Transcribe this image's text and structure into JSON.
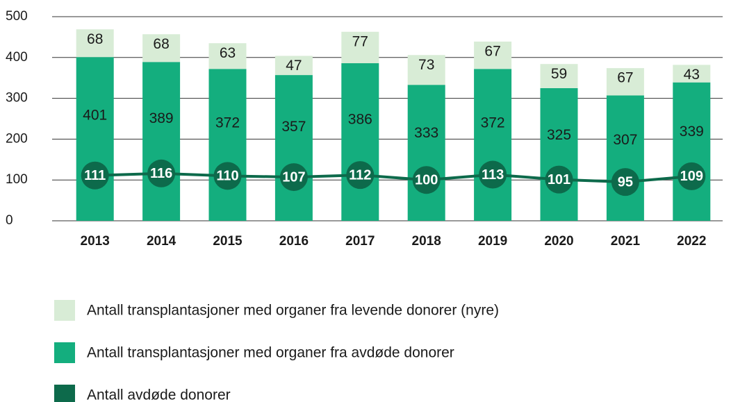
{
  "chart_data": {
    "type": "bar",
    "stacked": true,
    "categories": [
      "2013",
      "2014",
      "2015",
      "2016",
      "2017",
      "2018",
      "2019",
      "2020",
      "2021",
      "2022"
    ],
    "series": [
      {
        "name": "Antall transplantasjoner med organer fra avdøde donorer",
        "color": "#14ae7e",
        "values": [
          401,
          389,
          372,
          357,
          386,
          333,
          372,
          325,
          307,
          339
        ]
      },
      {
        "name": "Antall transplantasjoner med organer fra levende donorer (nyre)",
        "color": "#d8ecd6",
        "values": [
          68,
          68,
          63,
          47,
          77,
          73,
          67,
          59,
          67,
          43
        ]
      },
      {
        "name": "Antall avdøde donorer",
        "color": "#0d6a4b",
        "type": "line",
        "values": [
          111,
          116,
          110,
          107,
          112,
          100,
          113,
          101,
          95,
          109
        ]
      }
    ],
    "legend_order": [
      1,
      0,
      2
    ],
    "ylim": [
      0,
      500
    ],
    "yticks": [
      0,
      100,
      200,
      300,
      400,
      500
    ],
    "grid": true
  }
}
